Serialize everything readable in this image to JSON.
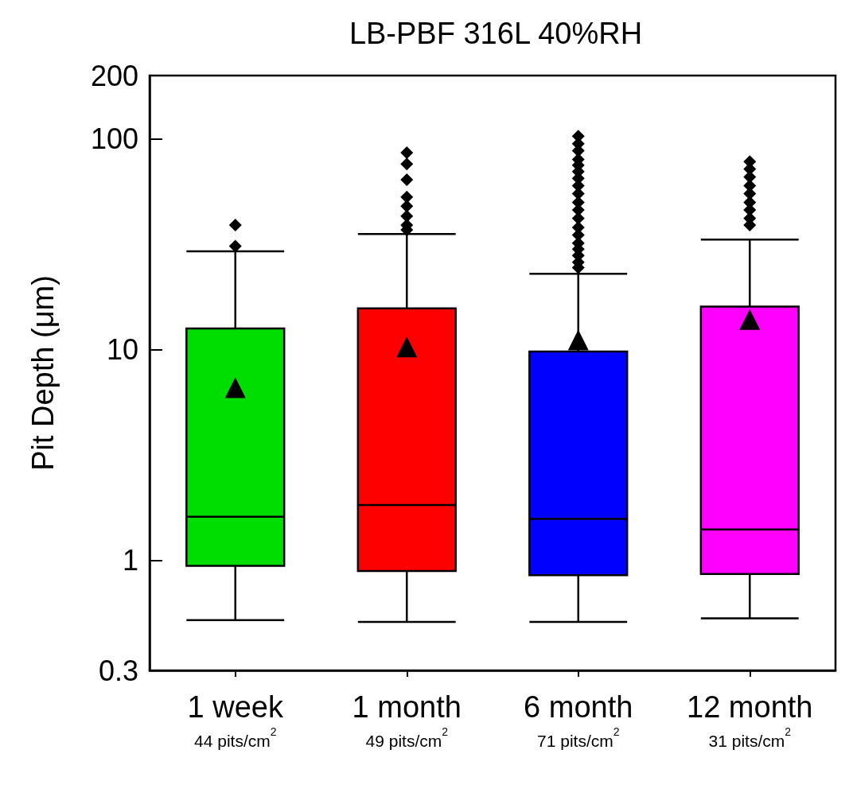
{
  "chart_data": {
    "type": "box",
    "title": "LB-PBF 316L 40%RH",
    "ylabel": "Pit Depth (μm)",
    "categories": [
      "1 week",
      "1 month",
      "6 month",
      "12 month"
    ],
    "colors": [
      "#00dd00",
      "#ff0000",
      "#0000ff",
      "#ff00ff"
    ],
    "boxes": [
      {
        "low": 0.52,
        "q1": 0.94,
        "median": 1.61,
        "q3": 12.6,
        "high": 29.3,
        "mean": 6.6,
        "outliers": [
          31,
          39
        ]
      },
      {
        "low": 0.51,
        "q1": 0.89,
        "median": 1.83,
        "q3": 15.7,
        "high": 35.4,
        "mean": 10.3,
        "outliers": [
          37,
          39,
          43,
          48,
          53,
          64,
          76,
          86
        ]
      },
      {
        "low": 0.51,
        "q1": 0.85,
        "median": 1.57,
        "q3": 9.8,
        "high": 22.9,
        "mean": 11.1,
        "outliers": [
          24.5,
          26,
          28,
          30,
          32,
          35,
          38,
          42,
          46,
          50,
          55,
          60,
          65,
          70,
          75,
          80,
          88,
          95,
          103
        ]
      },
      {
        "low": 0.53,
        "q1": 0.86,
        "median": 1.4,
        "q3": 16.0,
        "high": 33.3,
        "mean": 13.9,
        "outliers": [
          39,
          42,
          46,
          50,
          55,
          60,
          66,
          72,
          78
        ]
      }
    ],
    "annotations": [
      "44 pits/cm$^{2}$",
      "49 pits/cm$^{2}$",
      "71 pits/cm$^{2}$",
      "31 pits/cm$^{2}$"
    ],
    "log": true,
    "ylim": [
      0.3,
      200
    ],
    "yticks": [
      0.3,
      1,
      10,
      100,
      200
    ],
    "grid": false
  }
}
